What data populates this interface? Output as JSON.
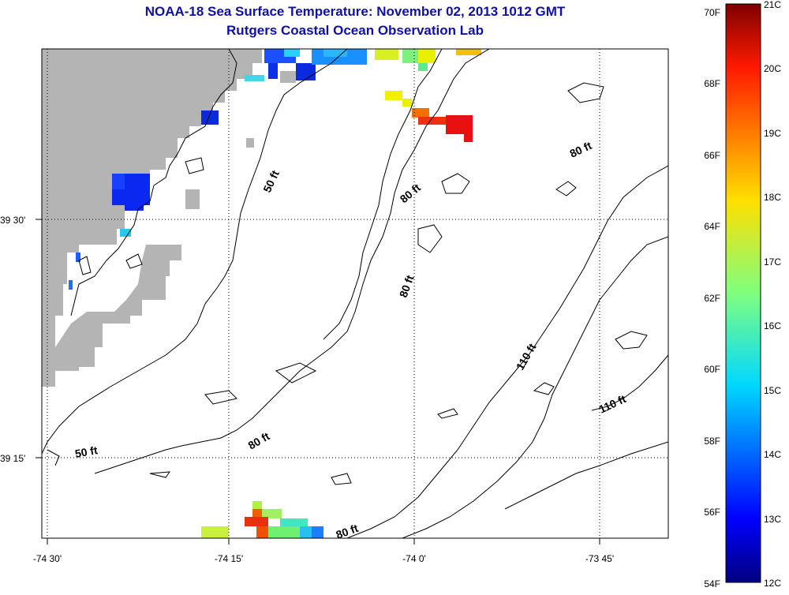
{
  "title": "NOAA-18 Sea Surface Temperature:  November 02, 2013 1012 GMT",
  "subtitle": "Rutgers Coastal Ocean Observation Lab",
  "x_ticks": [
    "-74 30'",
    "-74 15'",
    "-74 0'",
    "-73 45'"
  ],
  "y_ticks": [
    "39 30'",
    "39 15'"
  ],
  "contour_labels": [
    "50 ft",
    "80 ft",
    "80 ft",
    "80 ft",
    "110 ft",
    "110 ft",
    "50 ft",
    "80 ft",
    "80 ft"
  ],
  "colorbar": {
    "fahrenheit": [
      "70F",
      "68F",
      "66F",
      "64F",
      "62F",
      "60F",
      "58F",
      "56F",
      "54F"
    ],
    "celsius": [
      "21C",
      "20C",
      "19C",
      "18C",
      "17C",
      "16C",
      "15C",
      "14C",
      "13C",
      "12C"
    ],
    "range_c": [
      12,
      21
    ]
  },
  "colors": {
    "land": "#b4b4b4",
    "title": "#1010a8"
  }
}
